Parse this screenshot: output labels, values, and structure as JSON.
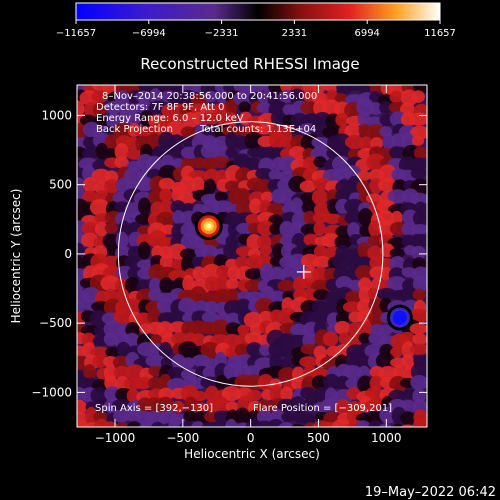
{
  "chart_data": {
    "type": "heatmap",
    "title": "Reconstructed RHESSI Image",
    "xlabel": "Heliocentric X (arcsec)",
    "ylabel": "Heliocentric Y (arcsec)",
    "xlim": [
      -1280,
      1300
    ],
    "ylim": [
      -1250,
      1220
    ],
    "xticks": [
      -1000,
      -500,
      0,
      500,
      1000
    ],
    "yticks": [
      -1000,
      -500,
      0,
      500,
      1000
    ],
    "xtick_labels": [
      "−1000",
      "−500",
      "0",
      "500",
      "1000"
    ],
    "ytick_labels": [
      "−1000",
      "−500",
      "0",
      "500",
      "1000"
    ],
    "colorbar": {
      "range": [
        -11657,
        11657
      ],
      "ticks": [
        "−11657",
        "−6994",
        "−2331",
        "2331",
        "6994",
        "11657"
      ]
    },
    "annotations": [
      "8–Nov–2014 20:38:56.000 to 20:41:56.000",
      "Detectors: 7F 8F 9F, Att 0",
      "Energy Range: 6.0 – 12.0 keV",
      "Back Projection",
      "Total counts: 1.13E+04",
      "Spin Axis = [392,−130]",
      "Flare Position = [−309,201]"
    ],
    "sources": [
      {
        "kind": "positive peak",
        "x": -309,
        "y": 201,
        "value": 11657
      },
      {
        "kind": "negative peak",
        "x": 1100,
        "y": -460,
        "value": -11657
      }
    ],
    "solar_limb_radius": 975,
    "spin_axis": [
      392,
      -130
    ]
  },
  "colors": {
    "background": "#000000",
    "foreground": "#ffffff",
    "negative": "#1010ff",
    "mid_negative": "#5a2a8c",
    "positive_low": "#d01818",
    "positive_high": "#ffff90"
  },
  "footer": {
    "timestamp": "19–May–2022 06:42"
  }
}
